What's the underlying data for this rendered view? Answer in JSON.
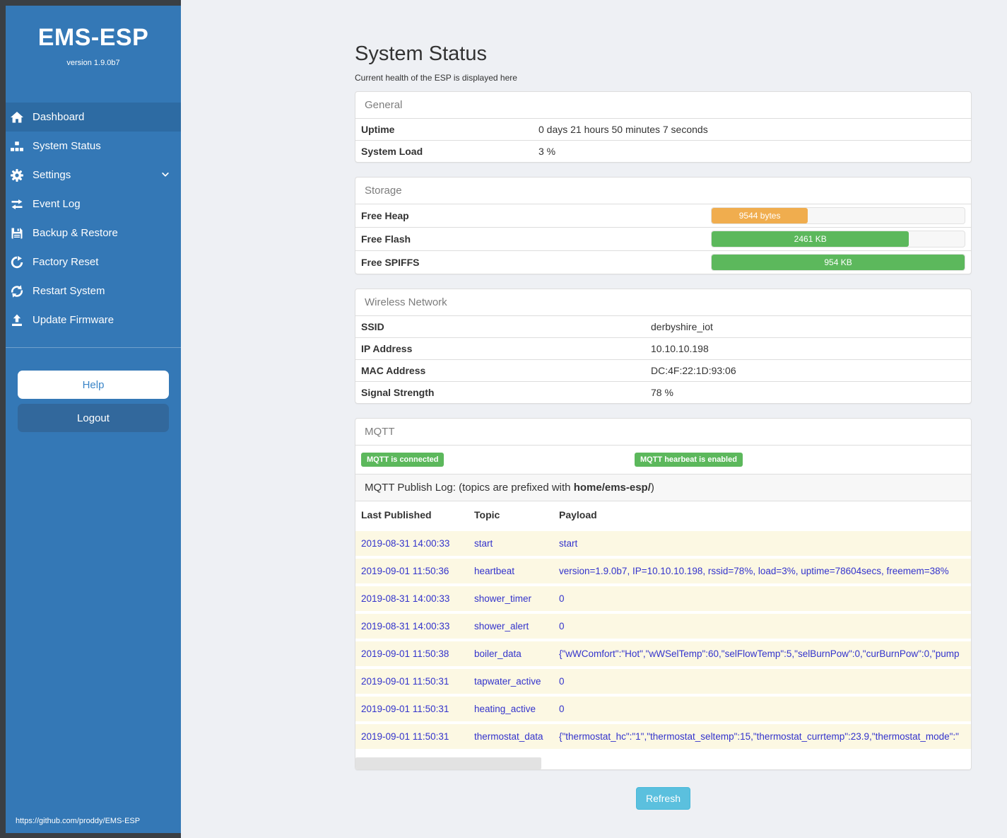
{
  "sidebar": {
    "title": "EMS-ESP",
    "version": "version 1.9.0b7",
    "items": [
      {
        "label": "Dashboard",
        "icon": "home-icon",
        "active": true
      },
      {
        "label": "System Status",
        "icon": "system-status-icon"
      },
      {
        "label": "Settings",
        "icon": "gear-icon",
        "chevron": true
      },
      {
        "label": "Event Log",
        "icon": "exchange-arrows-icon"
      },
      {
        "label": "Backup & Restore",
        "icon": "save-icon"
      },
      {
        "label": "Factory Reset",
        "icon": "rotate-right-icon"
      },
      {
        "label": "Restart System",
        "icon": "refresh-icon"
      },
      {
        "label": "Update Firmware",
        "icon": "upload-icon"
      }
    ],
    "help_label": "Help",
    "logout_label": "Logout",
    "footer_link": "https://github.com/proddy/EMS-ESP"
  },
  "page": {
    "title": "System Status",
    "subtitle": "Current health of the ESP is displayed here"
  },
  "general": {
    "heading": "General",
    "rows": [
      {
        "label": "Uptime",
        "value": "0 days 21 hours 50 minutes 7 seconds"
      },
      {
        "label": "System Load",
        "value": "3 %"
      }
    ]
  },
  "storage": {
    "heading": "Storage",
    "rows": [
      {
        "label": "Free Heap",
        "value": "9544 bytes",
        "percent": 38,
        "color": "#f0ad4e"
      },
      {
        "label": "Free Flash",
        "value": "2461 KB",
        "percent": 78,
        "color": "#5cb85c"
      },
      {
        "label": "Free SPIFFS",
        "value": "954 KB",
        "percent": 100,
        "color": "#5cb85c"
      }
    ]
  },
  "wireless": {
    "heading": "Wireless Network",
    "rows": [
      {
        "label": "SSID",
        "value": "derbyshire_iot"
      },
      {
        "label": "IP Address",
        "value": "10.10.10.198"
      },
      {
        "label": "MAC Address",
        "value": "DC:4F:22:1D:93:06"
      },
      {
        "label": "Signal Strength",
        "value": "78 %"
      }
    ]
  },
  "mqtt": {
    "heading": "MQTT",
    "badges": [
      "MQTT is connected",
      "MQTT hearbeat is enabled"
    ],
    "publish_log": {
      "prefix": "MQTT Publish Log: (topics are prefixed with ",
      "bold": "home/ems-esp/",
      "suffix": ")"
    },
    "table": {
      "headers": [
        "Last Published",
        "Topic",
        "Payload"
      ],
      "rows": [
        {
          "time": "2019-08-31 14:00:33",
          "topic": "start",
          "payload": "start"
        },
        {
          "time": "2019-09-01 11:50:36",
          "topic": "heartbeat",
          "payload": "version=1.9.0b7, IP=10.10.10.198, rssid=78%, load=3%, uptime=78604secs, freemem=38%"
        },
        {
          "time": "2019-08-31 14:00:33",
          "topic": "shower_timer",
          "payload": "0"
        },
        {
          "time": "2019-08-31 14:00:33",
          "topic": "shower_alert",
          "payload": "0"
        },
        {
          "time": "2019-09-01 11:50:38",
          "topic": "boiler_data",
          "payload": "{\"wWComfort\":\"Hot\",\"wWSelTemp\":60,\"selFlowTemp\":5,\"selBurnPow\":0,\"curBurnPow\":0,\"pump"
        },
        {
          "time": "2019-09-01 11:50:31",
          "topic": "tapwater_active",
          "payload": "0"
        },
        {
          "time": "2019-09-01 11:50:31",
          "topic": "heating_active",
          "payload": "0"
        },
        {
          "time": "2019-09-01 11:50:31",
          "topic": "thermostat_data",
          "payload": "{\"thermostat_hc\":\"1\",\"thermostat_seltemp\":15,\"thermostat_currtemp\":23.9,\"thermostat_mode\":\""
        }
      ]
    }
  },
  "refresh": {
    "label": "Refresh"
  },
  "colors": {
    "sidebar_blue": "#3478b6",
    "sidebar_dark": "#3a3f44",
    "nav_active": "#2d6ba3",
    "success_green": "#5cb85c",
    "warning_orange": "#f0ad4e",
    "info_blue": "#5bc0de",
    "link_blue": "#3333cc"
  }
}
